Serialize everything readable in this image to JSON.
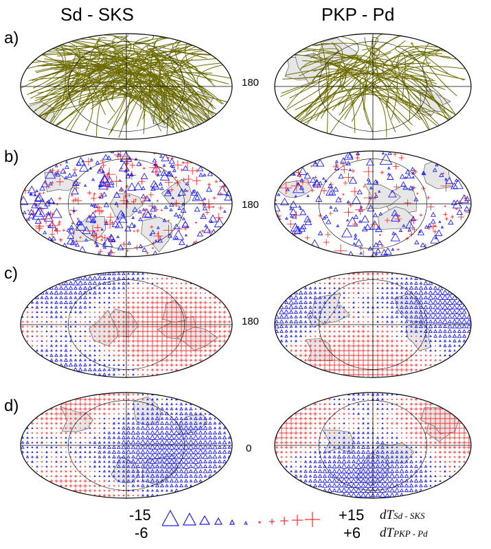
{
  "columns": [
    {
      "title": "Sd - SKS"
    },
    {
      "title": "PKP - Pd"
    }
  ],
  "rows": [
    {
      "label": "a)",
      "lon_label": "180",
      "kind": "paths"
    },
    {
      "label": "b)",
      "lon_label": "180",
      "kind": "symbols"
    },
    {
      "label": "c)",
      "lon_label": "180",
      "kind": "grid"
    },
    {
      "label": "d)",
      "lon_label": "0",
      "kind": "grid"
    }
  ],
  "legend": {
    "neg_sd": "-15",
    "neg_pkp": "-6",
    "pos_sd": "+15",
    "pos_pkp": "+6",
    "var_main": "dT",
    "var_sd_sub": "Sd - SKS",
    "var_pkp_sub": "PKP - Pd"
  },
  "colors": {
    "paths": "#6b6b00",
    "negative": "#1a1aff",
    "positive": "#ff2a2a",
    "land": "#e6e6e6",
    "outline": "#000000"
  }
}
